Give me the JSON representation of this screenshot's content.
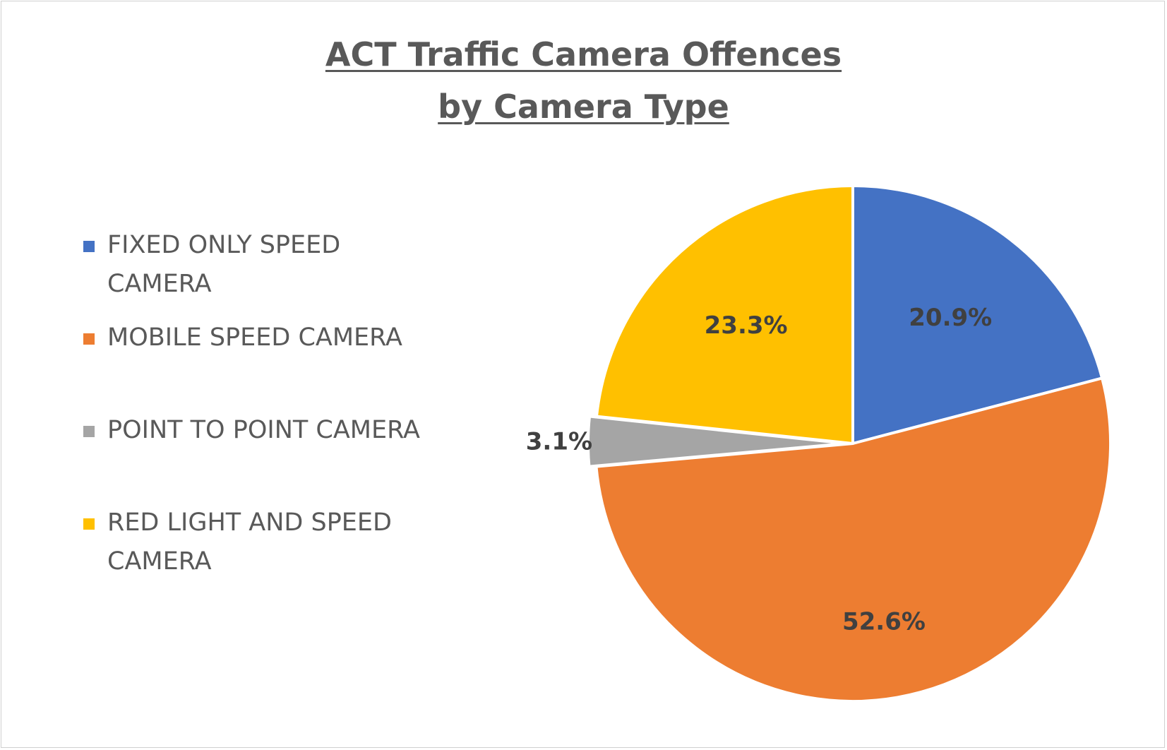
{
  "chart_data": {
    "type": "pie",
    "title_lines": [
      "ACT Traffic Camera Offences",
      "by Camera Type"
    ],
    "categories": [
      "FIXED ONLY SPEED CAMERA",
      "MOBILE SPEED CAMERA",
      "POINT TO POINT CAMERA",
      "RED LIGHT AND SPEED CAMERA"
    ],
    "legend_lines": [
      [
        "FIXED ONLY SPEED",
        "CAMERA"
      ],
      [
        "MOBILE SPEED CAMERA"
      ],
      [
        "POINT TO POINT CAMERA"
      ],
      [
        "RED LIGHT AND SPEED",
        "CAMERA"
      ]
    ],
    "values": [
      20.9,
      52.6,
      3.1,
      23.3
    ],
    "data_labels": [
      "20.9%",
      "52.6%",
      "3.1%",
      "23.3%"
    ],
    "colors": [
      "#4472C4",
      "#ED7D31",
      "#A5A5A5",
      "#FFC000"
    ],
    "legend_position": "left",
    "start_angle_deg": 0,
    "direction": "clockwise"
  }
}
